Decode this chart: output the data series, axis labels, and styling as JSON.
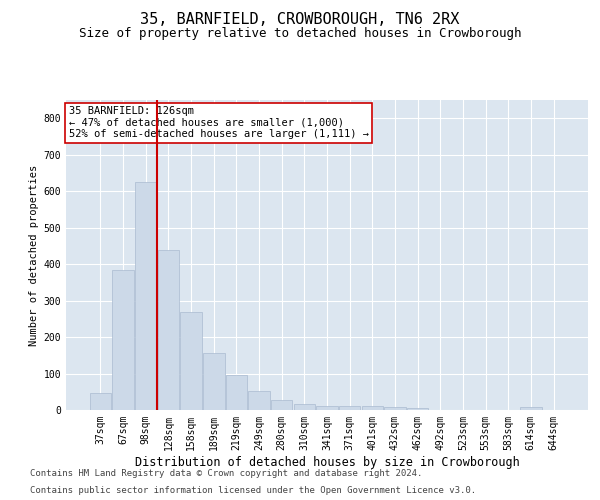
{
  "title": "35, BARNFIELD, CROWBOROUGH, TN6 2RX",
  "subtitle": "Size of property relative to detached houses in Crowborough",
  "xlabel": "Distribution of detached houses by size in Crowborough",
  "ylabel": "Number of detached properties",
  "categories": [
    "37sqm",
    "67sqm",
    "98sqm",
    "128sqm",
    "158sqm",
    "189sqm",
    "219sqm",
    "249sqm",
    "280sqm",
    "310sqm",
    "341sqm",
    "371sqm",
    "401sqm",
    "432sqm",
    "462sqm",
    "492sqm",
    "523sqm",
    "553sqm",
    "583sqm",
    "614sqm",
    "644sqm"
  ],
  "values": [
    47,
    385,
    625,
    440,
    268,
    155,
    97,
    52,
    28,
    17,
    10,
    10,
    10,
    8,
    5,
    0,
    0,
    0,
    0,
    8,
    0
  ],
  "bar_color": "#ccd9e8",
  "bar_edge_color": "#aabbd0",
  "vline_x": 2.5,
  "vline_color": "#cc0000",
  "annotation_text": "35 BARNFIELD: 126sqm\n← 47% of detached houses are smaller (1,000)\n52% of semi-detached houses are larger (1,111) →",
  "annotation_box_color": "#ffffff",
  "annotation_box_edge": "#cc0000",
  "ylim": [
    0,
    850
  ],
  "yticks": [
    0,
    100,
    200,
    300,
    400,
    500,
    600,
    700,
    800
  ],
  "footer_line1": "Contains HM Land Registry data © Crown copyright and database right 2024.",
  "footer_line2": "Contains public sector information licensed under the Open Government Licence v3.0.",
  "bg_color": "#dce6f0",
  "fig_bg_color": "#ffffff",
  "title_fontsize": 11,
  "subtitle_fontsize": 9,
  "xlabel_fontsize": 8.5,
  "ylabel_fontsize": 7.5,
  "tick_fontsize": 7,
  "annotation_fontsize": 7.5,
  "footer_fontsize": 6.5
}
